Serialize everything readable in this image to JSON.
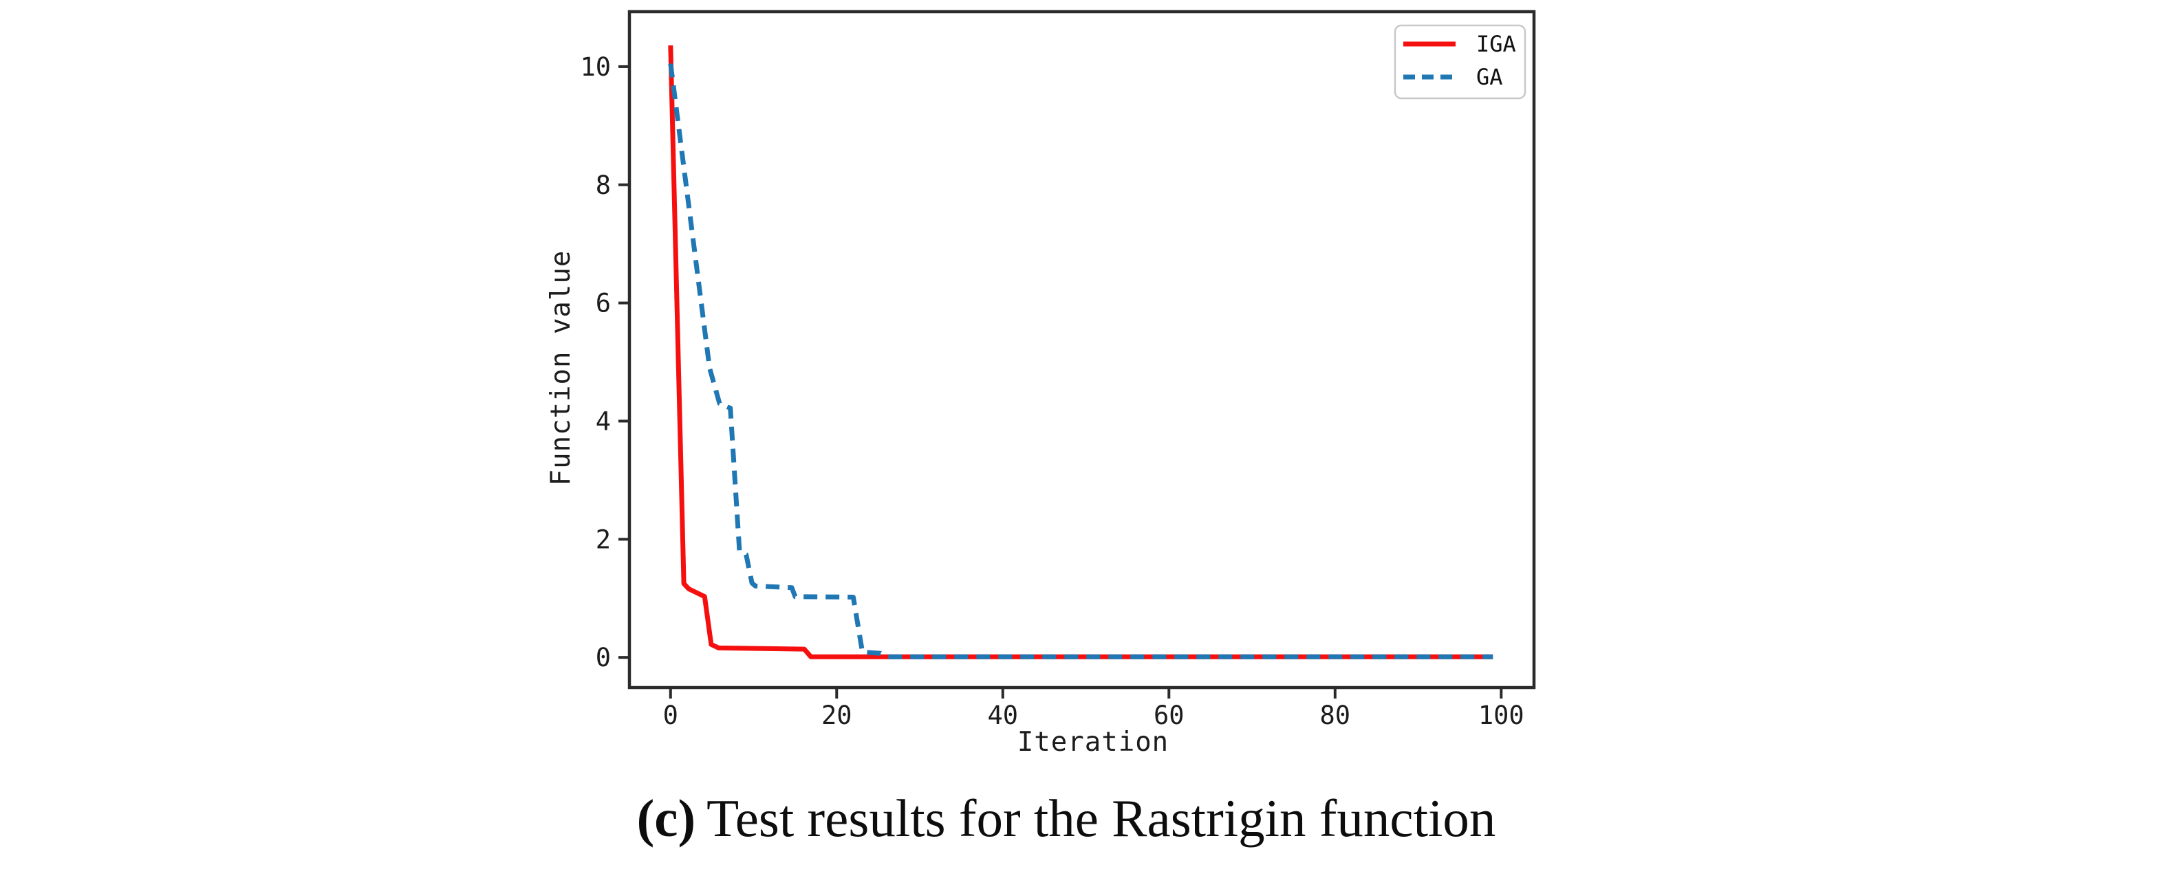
{
  "figure": {
    "caption": {
      "label": "(c)",
      "text": "Test results for the Rastrigin function"
    }
  },
  "chart_data": {
    "type": "line",
    "title": "",
    "xlabel": "Iteration",
    "ylabel": "Function value",
    "xlim": [
      -4.95,
      103.95
    ],
    "ylim": [
      -0.51,
      10.93
    ],
    "xticks": [
      0,
      20,
      40,
      60,
      80,
      100
    ],
    "yticks": [
      0,
      2,
      4,
      6,
      8,
      10
    ],
    "grid": false,
    "legend_position": "upper right",
    "axis_color": "#2b2b2b",
    "legend_border_color": "#c8c8c8",
    "series": [
      {
        "name": "IGA",
        "color": "#f5100f",
        "style": "solid",
        "points": [
          [
            0,
            10.36
          ],
          [
            1.6,
            1.25
          ],
          [
            2.2,
            1.16
          ],
          [
            4.1,
            1.03
          ],
          [
            4.9,
            0.22
          ],
          [
            5.8,
            0.16
          ],
          [
            16.1,
            0.14
          ],
          [
            16.9,
            0.01
          ],
          [
            99,
            0.01
          ]
        ]
      },
      {
        "name": "GA",
        "color": "#1f77b4",
        "style": "dashed",
        "points": [
          [
            0,
            10.05
          ],
          [
            4.7,
            4.9
          ],
          [
            5.9,
            4.3
          ],
          [
            7.2,
            4.22
          ],
          [
            8.3,
            1.8
          ],
          [
            9.1,
            1.74
          ],
          [
            9.8,
            1.26
          ],
          [
            10.2,
            1.21
          ],
          [
            14.6,
            1.18
          ],
          [
            15.0,
            1.03
          ],
          [
            22.0,
            1.02
          ],
          [
            23.1,
            0.09
          ],
          [
            25.3,
            0.07
          ],
          [
            26.2,
            0.01
          ],
          [
            99,
            0.01
          ]
        ]
      }
    ]
  }
}
